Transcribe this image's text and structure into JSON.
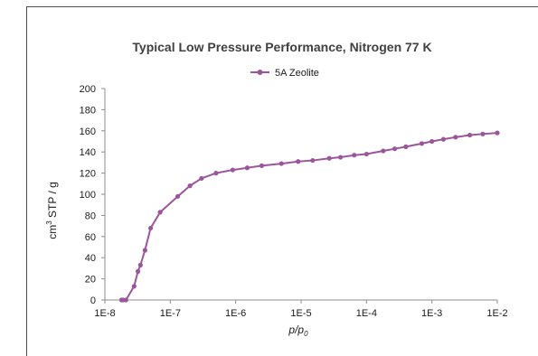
{
  "chart_data": {
    "type": "line",
    "title": "Typical Low Pressure Performance, Nitrogen 77 K",
    "xlabel": "p/p0",
    "ylabel": "cm3 STP / g",
    "x_scale": "log",
    "xlim": [
      1e-08,
      0.01
    ],
    "ylim": [
      0,
      200
    ],
    "x_ticks": [
      "1E-8",
      "1E-7",
      "1E-6",
      "1E-5",
      "1E-4",
      "1E-3",
      "1E-2"
    ],
    "y_ticks": [
      0,
      20,
      40,
      60,
      80,
      100,
      120,
      140,
      160,
      180,
      200
    ],
    "grid": false,
    "legend_position": "top-center",
    "series": [
      {
        "name": "5A Zeolite",
        "color": "#9b569b",
        "x": [
          1.8e-08,
          1.9e-08,
          2.1e-08,
          2.8e-08,
          3.2e-08,
          3.5e-08,
          4.1e-08,
          5e-08,
          7e-08,
          1.3e-07,
          2e-07,
          3e-07,
          5e-07,
          9e-07,
          1.5e-06,
          2.5e-06,
          5e-06,
          9e-06,
          1.5e-05,
          2.7e-05,
          4e-05,
          6.5e-05,
          0.0001,
          0.00018,
          0.00027,
          0.0004,
          0.0007,
          0.001,
          0.0015,
          0.0023,
          0.0038,
          0.006,
          0.01
        ],
        "y": [
          0,
          0,
          0,
          13,
          27,
          33,
          47,
          68,
          83,
          98,
          108,
          115,
          120,
          123,
          125,
          127,
          129,
          131,
          132,
          134,
          135,
          137,
          138,
          141,
          143,
          145,
          148,
          150,
          152,
          154,
          156,
          157,
          158
        ]
      }
    ]
  }
}
